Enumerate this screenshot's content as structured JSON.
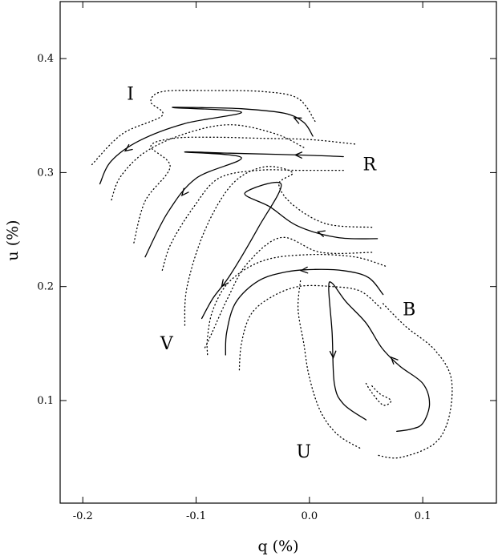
{
  "chart_data": {
    "type": "line",
    "xlabel": "q (%)",
    "ylabel": "u (%)",
    "xlim": [
      -0.22,
      0.165
    ],
    "ylim": [
      0.01,
      0.45
    ],
    "x_ticks": [
      -0.2,
      -0.1,
      0.0,
      0.1
    ],
    "x_tick_labels": [
      "-0.2",
      "-0.1",
      "0.0",
      "0.1"
    ],
    "y_ticks": [
      0.1,
      0.2,
      0.3,
      0.4
    ],
    "y_tick_labels": [
      "0.1",
      "0.2",
      "0.3",
      "0.4"
    ],
    "grid": false,
    "legend": "none",
    "series": [
      {
        "label": "I",
        "label_pos": [
          -0.158,
          0.364
        ],
        "points": [
          [
            0.003,
            0.332
          ],
          [
            -0.005,
            0.344
          ],
          [
            -0.022,
            0.352
          ],
          [
            -0.06,
            0.356
          ],
          [
            -0.095,
            0.357
          ],
          [
            -0.12,
            0.357
          ],
          [
            -0.06,
            0.353
          ],
          [
            -0.11,
            0.343
          ],
          [
            -0.15,
            0.328
          ],
          [
            -0.175,
            0.31
          ],
          [
            -0.185,
            0.29
          ]
        ],
        "arrows": [
          [
            1,
            2
          ],
          [
            8,
            9
          ]
        ],
        "band_outer": [
          [
            0.005,
            0.345
          ],
          [
            -0.01,
            0.365
          ],
          [
            -0.04,
            0.371
          ],
          [
            -0.09,
            0.372
          ],
          [
            -0.13,
            0.371
          ],
          [
            -0.14,
            0.362
          ],
          [
            -0.13,
            0.35
          ],
          [
            -0.165,
            0.334
          ],
          [
            -0.192,
            0.307
          ]
        ],
        "band_inner": [
          [
            -0.005,
            0.322
          ],
          [
            -0.03,
            0.334
          ],
          [
            -0.07,
            0.342
          ],
          [
            -0.11,
            0.334
          ],
          [
            -0.145,
            0.318
          ],
          [
            -0.167,
            0.296
          ],
          [
            -0.175,
            0.275
          ]
        ]
      },
      {
        "label": "R",
        "label_pos": [
          0.053,
          0.302
        ],
        "points": [
          [
            0.03,
            0.314
          ],
          [
            0.005,
            0.315
          ],
          [
            -0.03,
            0.316
          ],
          [
            -0.07,
            0.317
          ],
          [
            -0.11,
            0.318
          ],
          [
            -0.06,
            0.313
          ],
          [
            -0.1,
            0.295
          ],
          [
            -0.125,
            0.265
          ],
          [
            -0.145,
            0.226
          ]
        ],
        "arrows": [
          [
            1,
            2
          ],
          [
            6,
            7
          ]
        ],
        "band_outer": [
          [
            0.04,
            0.325
          ],
          [
            0.0,
            0.329
          ],
          [
            -0.04,
            0.33
          ],
          [
            -0.085,
            0.331
          ],
          [
            -0.12,
            0.33
          ],
          [
            -0.14,
            0.323
          ],
          [
            -0.123,
            0.305
          ],
          [
            -0.145,
            0.275
          ],
          [
            -0.155,
            0.238
          ]
        ],
        "band_inner": [
          [
            0.03,
            0.302
          ],
          [
            -0.01,
            0.302
          ],
          [
            -0.045,
            0.302
          ],
          [
            -0.08,
            0.295
          ],
          [
            -0.102,
            0.27
          ],
          [
            -0.122,
            0.238
          ],
          [
            -0.13,
            0.214
          ]
        ]
      },
      {
        "label": "V",
        "label_pos": [
          -0.126,
          0.145
        ],
        "points": [
          [
            0.06,
            0.242
          ],
          [
            0.025,
            0.243
          ],
          [
            -0.01,
            0.253
          ],
          [
            -0.035,
            0.27
          ],
          [
            -0.057,
            0.282
          ],
          [
            -0.025,
            0.29
          ],
          [
            -0.045,
            0.252
          ],
          [
            -0.07,
            0.21
          ],
          [
            -0.085,
            0.19
          ],
          [
            -0.095,
            0.172
          ]
        ],
        "arrows": [
          [
            1,
            2
          ],
          [
            7,
            8
          ]
        ],
        "band_outer": [
          [
            0.055,
            0.252
          ],
          [
            0.015,
            0.255
          ],
          [
            -0.015,
            0.272
          ],
          [
            -0.027,
            0.29
          ],
          [
            -0.015,
            0.3
          ],
          [
            -0.04,
            0.305
          ],
          [
            -0.068,
            0.29
          ],
          [
            -0.092,
            0.25
          ],
          [
            -0.108,
            0.2
          ],
          [
            -0.11,
            0.165
          ]
        ],
        "band_inner": [
          [
            0.055,
            0.23
          ],
          [
            0.01,
            0.23
          ],
          [
            -0.025,
            0.243
          ],
          [
            -0.055,
            0.22
          ],
          [
            -0.072,
            0.19
          ],
          [
            -0.088,
            0.155
          ],
          [
            -0.093,
            0.145
          ]
        ]
      },
      {
        "label": "B",
        "label_pos": [
          0.088,
          0.175
        ],
        "points": [
          [
            0.065,
            0.193
          ],
          [
            0.052,
            0.208
          ],
          [
            0.03,
            0.214
          ],
          [
            0.005,
            0.215
          ],
          [
            -0.02,
            0.213
          ],
          [
            -0.045,
            0.205
          ],
          [
            -0.065,
            0.186
          ],
          [
            -0.073,
            0.16
          ],
          [
            -0.074,
            0.14
          ]
        ],
        "arrows": [
          [
            3,
            4
          ]
        ],
        "band_outer": [
          [
            0.067,
            0.218
          ],
          [
            0.04,
            0.226
          ],
          [
            0.0,
            0.228
          ],
          [
            -0.04,
            0.223
          ],
          [
            -0.07,
            0.205
          ],
          [
            -0.085,
            0.18
          ],
          [
            -0.09,
            0.155
          ],
          [
            -0.09,
            0.14
          ]
        ],
        "band_inner": [
          [
            0.063,
            0.181
          ],
          [
            0.045,
            0.196
          ],
          [
            0.02,
            0.2
          ],
          [
            -0.01,
            0.2
          ],
          [
            -0.035,
            0.19
          ],
          [
            -0.052,
            0.175
          ],
          [
            -0.06,
            0.15
          ],
          [
            -0.062,
            0.125
          ]
        ]
      },
      {
        "label": "U",
        "label_pos": [
          -0.005,
          0.05
        ],
        "points": [
          [
            0.077,
            0.073
          ],
          [
            0.09,
            0.075
          ],
          [
            0.1,
            0.08
          ],
          [
            0.106,
            0.097
          ],
          [
            0.1,
            0.115
          ],
          [
            0.08,
            0.13
          ],
          [
            0.064,
            0.146
          ],
          [
            0.05,
            0.168
          ],
          [
            0.032,
            0.187
          ],
          [
            0.02,
            0.203
          ],
          [
            0.017,
            0.198
          ],
          [
            0.02,
            0.16
          ],
          [
            0.022,
            0.115
          ],
          [
            0.03,
            0.097
          ],
          [
            0.05,
            0.083
          ]
        ],
        "arrows": [
          [
            5,
            6
          ],
          [
            11,
            12
          ]
        ],
        "band_outer": [
          [
            0.065,
            0.185
          ],
          [
            0.085,
            0.165
          ],
          [
            0.11,
            0.145
          ],
          [
            0.125,
            0.12
          ],
          [
            0.123,
            0.085
          ],
          [
            0.11,
            0.062
          ],
          [
            0.08,
            0.05
          ],
          [
            0.06,
            0.052
          ]
        ],
        "band_inner": [
          [
            -0.008,
            0.205
          ],
          [
            -0.01,
            0.18
          ],
          [
            -0.005,
            0.15
          ],
          [
            0.0,
            0.12
          ],
          [
            0.01,
            0.09
          ],
          [
            0.025,
            0.07
          ],
          [
            0.045,
            0.058
          ]
        ],
        "inner_loop": [
          [
            0.05,
            0.115
          ],
          [
            0.055,
            0.107
          ],
          [
            0.065,
            0.096
          ],
          [
            0.072,
            0.1
          ],
          [
            0.062,
            0.106
          ],
          [
            0.055,
            0.113
          ]
        ]
      }
    ]
  }
}
